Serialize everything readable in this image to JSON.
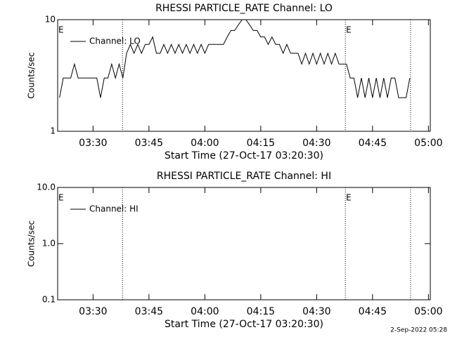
{
  "chart_data": [
    {
      "type": "line",
      "title": "RHESSI PARTICLE_RATE Channel: LO",
      "xlabel": "Start Time (27-Oct-17 03:20:30)",
      "ylabel": "Counts/sec",
      "ylog": true,
      "legend": "upper left",
      "xlim": [
        200.5,
        300.5
      ],
      "xticks": [
        {
          "value": 210,
          "label": "03:30"
        },
        {
          "value": 225,
          "label": "03:45"
        },
        {
          "value": 240,
          "label": "04:00"
        },
        {
          "value": 255,
          "label": "04:15"
        },
        {
          "value": 270,
          "label": "04:30"
        },
        {
          "value": 285,
          "label": "04:45"
        },
        {
          "value": 300,
          "label": "05:00"
        }
      ],
      "ylim": [
        1,
        10
      ],
      "yticks": [
        1,
        10
      ],
      "event_lines": [
        217.9,
        277.7,
        295.2
      ],
      "event_labels": [
        {
          "x": 200.5,
          "label": "E"
        },
        {
          "x": 277.7,
          "label": "E"
        }
      ],
      "x": [
        201,
        202,
        203,
        204,
        205,
        206,
        207,
        208,
        209,
        210,
        211,
        212,
        213,
        214,
        215,
        216,
        217,
        218,
        219,
        220,
        221,
        222,
        223,
        224,
        225,
        226,
        227,
        228,
        229,
        230,
        231,
        232,
        233,
        234,
        235,
        236,
        237,
        238,
        239,
        240,
        241,
        242,
        243,
        244,
        245,
        246,
        247,
        248,
        249,
        250,
        251,
        252,
        253,
        254,
        255,
        256,
        257,
        258,
        259,
        260,
        261,
        262,
        263,
        264,
        265,
        266,
        267,
        268,
        269,
        270,
        271,
        272,
        273,
        274,
        275,
        276,
        277,
        278,
        279,
        280,
        281,
        282,
        283,
        284,
        285,
        286,
        287,
        288,
        289,
        290,
        291,
        292,
        293,
        294,
        295
      ],
      "series": [
        {
          "name": "Channel: LO",
          "color": "#000000",
          "values": [
            2,
            3,
            3,
            3,
            4,
            3,
            3,
            3,
            3,
            3,
            3,
            2,
            3,
            3,
            4,
            3,
            4,
            3,
            5,
            6,
            5,
            6,
            5,
            6,
            6,
            7,
            5,
            5,
            6,
            5,
            6,
            5,
            6,
            5,
            6,
            5,
            6,
            5,
            6,
            5,
            6,
            6,
            6,
            6,
            6,
            7,
            8,
            8,
            9,
            10,
            10,
            9,
            8,
            8,
            7,
            7,
            6,
            7,
            6,
            6,
            5,
            6,
            5,
            5,
            5,
            4,
            5,
            4,
            5,
            4,
            5,
            4,
            5,
            4,
            5,
            4,
            4,
            4,
            3,
            3,
            2,
            3,
            2,
            3,
            2,
            3,
            2,
            3,
            2,
            3,
            3,
            2,
            2,
            2,
            3
          ]
        }
      ]
    },
    {
      "type": "line",
      "title": "RHESSI PARTICLE_RATE Channel: HI",
      "xlabel": "Start Time (27-Oct-17 03:20:30)",
      "ylabel": "Counts/sec",
      "ylog": true,
      "legend": "upper left",
      "xlim": [
        200.5,
        300.5
      ],
      "xticks": [
        {
          "value": 210,
          "label": "03:30"
        },
        {
          "value": 225,
          "label": "03:45"
        },
        {
          "value": 240,
          "label": "04:00"
        },
        {
          "value": 255,
          "label": "04:15"
        },
        {
          "value": 270,
          "label": "04:30"
        },
        {
          "value": 285,
          "label": "04:45"
        },
        {
          "value": 300,
          "label": "05:00"
        }
      ],
      "ylim": [
        0.1,
        10
      ],
      "yticks": [
        0.1,
        {
          "value": 1,
          "label": "1.0"
        },
        {
          "value": 10,
          "label": "10.0"
        }
      ],
      "event_lines": [
        217.9,
        277.7,
        295.2
      ],
      "event_labels": [
        {
          "x": 200.5,
          "label": "E"
        },
        {
          "x": 277.7,
          "label": "E"
        }
      ],
      "x": [],
      "series": [
        {
          "name": "Channel: HI",
          "color": "#000000",
          "values": []
        }
      ]
    }
  ],
  "footer": "2-Sep-2022 05:28"
}
